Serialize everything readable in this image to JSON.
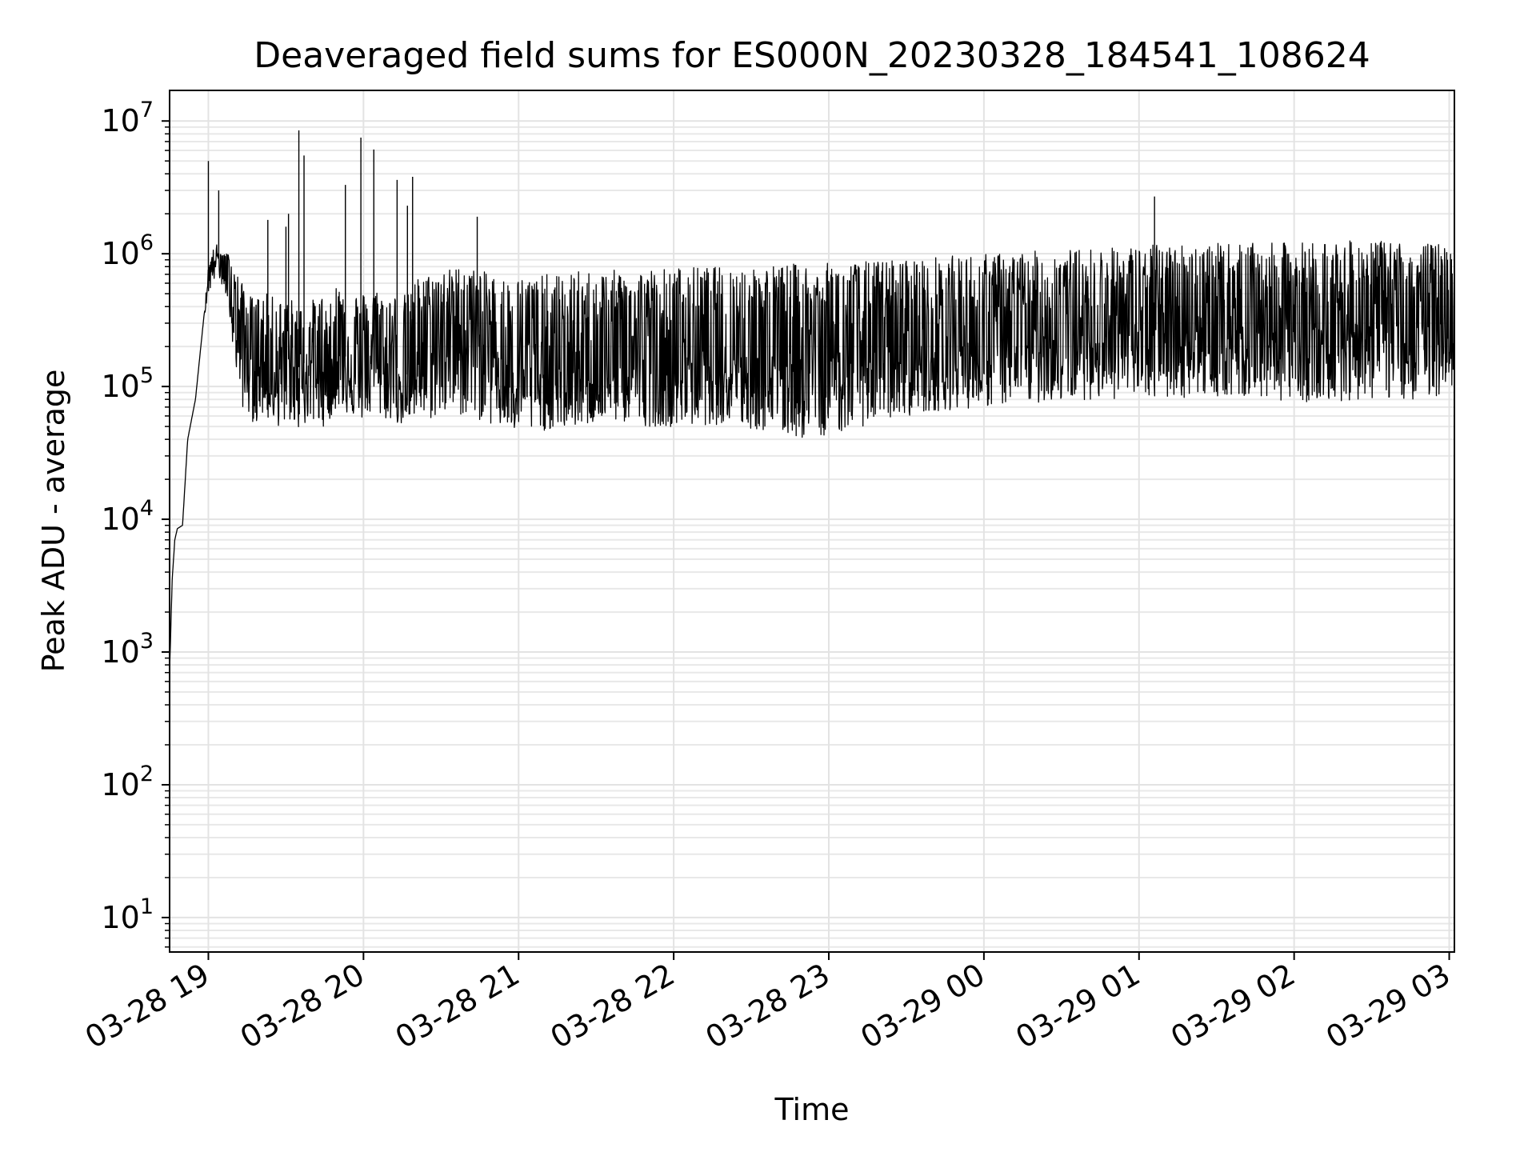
{
  "chart_data": {
    "type": "line",
    "title": "Deaveraged field sums for ES000N_20230328_184541_108624",
    "xlabel": "Time",
    "ylabel": "Peak ADU - average",
    "y_scale": "log",
    "ylim": [
      5.5,
      17000000
    ],
    "xlim": [
      "2023-03-28 18:45",
      "2023-03-29 03:02"
    ],
    "grid": true,
    "x_ticks": [
      "03-28 19",
      "03-28 20",
      "03-28 21",
      "03-28 22",
      "03-28 23",
      "03-29 00",
      "03-29 01",
      "03-29 02",
      "03-29 03"
    ],
    "y_ticks": [
      {
        "value": 10,
        "base": "10",
        "exp": "1"
      },
      {
        "value": 100,
        "base": "10",
        "exp": "2"
      },
      {
        "value": 1000,
        "base": "10",
        "exp": "3"
      },
      {
        "value": 10000,
        "base": "10",
        "exp": "4"
      },
      {
        "value": 100000,
        "base": "10",
        "exp": "5"
      },
      {
        "value": 1000000,
        "base": "10",
        "exp": "6"
      },
      {
        "value": 10000000,
        "base": "10",
        "exp": "7"
      }
    ],
    "line_color": "#000000",
    "series": [
      {
        "x": [
          "2023-03-28 18:45",
          "2023-03-28 18:46",
          "2023-03-28 18:47",
          "2023-03-28 18:48",
          "2023-03-28 18:50",
          "2023-03-28 18:52",
          "2023-03-28 18:55",
          "2023-03-28 18:58",
          "2023-03-28 19:00",
          "2023-03-28 19:02",
          "2023-03-28 19:03",
          "2023-03-28 19:05",
          "2023-03-28 19:08",
          "2023-03-28 19:10",
          "2023-03-28 19:13",
          "2023-03-28 19:16",
          "2023-03-28 19:18",
          "2023-03-28 19:20",
          "2023-03-28 19:23",
          "2023-03-28 19:27",
          "2023-03-28 19:31",
          "2023-03-28 19:35",
          "2023-03-28 19:37",
          "2023-03-28 19:40",
          "2023-03-28 19:45",
          "2023-03-28 19:50",
          "2023-03-28 19:55",
          "2023-03-28 19:58",
          "2023-03-28 20:04",
          "2023-03-28 20:10",
          "2023-03-28 20:18",
          "2023-03-28 20:20",
          "2023-03-28 20:25",
          "2023-03-28 20:30",
          "2023-03-28 20:37",
          "2023-03-28 20:45",
          "2023-03-28 20:50",
          "2023-03-28 20:56",
          "2023-03-28 21:05",
          "2023-03-28 21:15",
          "2023-03-28 21:25",
          "2023-03-28 21:35",
          "2023-03-28 21:50",
          "2023-03-28 22:05",
          "2023-03-28 22:20",
          "2023-03-28 22:35",
          "2023-03-28 22:50",
          "2023-03-28 23:05",
          "2023-03-28 23:20",
          "2023-03-28 23:40",
          "2023-03-29 00:00",
          "2023-03-29 00:20",
          "2023-03-29 00:40",
          "2023-03-29 01:00",
          "2023-03-29 01:10",
          "2023-03-29 01:30",
          "2023-03-29 01:50",
          "2023-03-29 02:10",
          "2023-03-29 02:30",
          "2023-03-29 02:50",
          "2023-03-29 03:02"
        ],
        "y": [
          700,
          3500,
          7000,
          8500,
          9000,
          40000,
          80000,
          300000,
          700000,
          900000,
          950000,
          900000,
          800000,
          400000,
          250000,
          180000,
          150000,
          200000,
          180000,
          150000,
          160000,
          140000,
          150000,
          160000,
          130000,
          200000,
          150000,
          130000,
          200000,
          150000,
          120000,
          220000,
          200000,
          250000,
          300000,
          280000,
          200000,
          150000,
          130000,
          120000,
          150000,
          160000,
          170000,
          180000,
          200000,
          210000,
          180000,
          190000,
          200000,
          220000,
          230000,
          250000,
          270000,
          280000,
          300000,
          320000,
          330000,
          320000,
          340000,
          330000,
          350000
        ],
        "band_low": [
          700,
          3500,
          7000,
          8500,
          9000,
          40000,
          80000,
          300000,
          500000,
          600000,
          700000,
          600000,
          400000,
          150000,
          70000,
          60000,
          50000,
          60000,
          55000,
          50000,
          55000,
          48000,
          50000,
          52000,
          50000,
          70000,
          60000,
          55000,
          60000,
          55000,
          48000,
          55000,
          55000,
          60000,
          60000,
          55000,
          50000,
          45000,
          45000,
          48000,
          50000,
          55000,
          50000,
          50000,
          52000,
          45000,
          40000,
          45000,
          55000,
          65000,
          70000,
          75000,
          80000,
          80000,
          80000,
          85000,
          80000,
          75000,
          80000,
          80000,
          90000
        ],
        "band_high": [
          700,
          3500,
          7000,
          8500,
          9000,
          40000,
          80000,
          300000,
          800000,
          1100000,
          1200000,
          1000000,
          1000000,
          800000,
          600000,
          500000,
          450000,
          500000,
          500000,
          450000,
          480000,
          400000,
          420000,
          450000,
          500000,
          600000,
          600000,
          500000,
          550000,
          500000,
          500000,
          650000,
          700000,
          750000,
          800000,
          750000,
          700000,
          650000,
          700000,
          700000,
          750000,
          750000,
          780000,
          800000,
          800000,
          820000,
          850000,
          850000,
          900000,
          950000,
          1000000,
          1050000,
          1100000,
          1150000,
          1200000,
          1200000,
          1200000,
          1250000,
          1250000,
          1200000,
          1200000
        ]
      }
    ],
    "spikes": [
      {
        "x": "2023-03-28 19:00",
        "y": 5000000
      },
      {
        "x": "2023-03-28 19:04",
        "y": 3000000
      },
      {
        "x": "2023-03-28 19:23",
        "y": 1800000
      },
      {
        "x": "2023-03-28 19:30",
        "y": 1600000
      },
      {
        "x": "2023-03-28 19:31",
        "y": 2000000
      },
      {
        "x": "2023-03-28 19:35",
        "y": 8500000
      },
      {
        "x": "2023-03-28 19:37",
        "y": 5500000
      },
      {
        "x": "2023-03-28 19:53",
        "y": 3300000
      },
      {
        "x": "2023-03-28 19:59",
        "y": 7500000
      },
      {
        "x": "2023-03-28 20:04",
        "y": 6100000
      },
      {
        "x": "2023-03-28 20:13",
        "y": 3600000
      },
      {
        "x": "2023-03-28 20:17",
        "y": 2300000
      },
      {
        "x": "2023-03-28 20:19",
        "y": 3800000
      },
      {
        "x": "2023-03-28 20:44",
        "y": 1900000
      },
      {
        "x": "2023-03-29 01:06",
        "y": 2700000
      }
    ]
  }
}
